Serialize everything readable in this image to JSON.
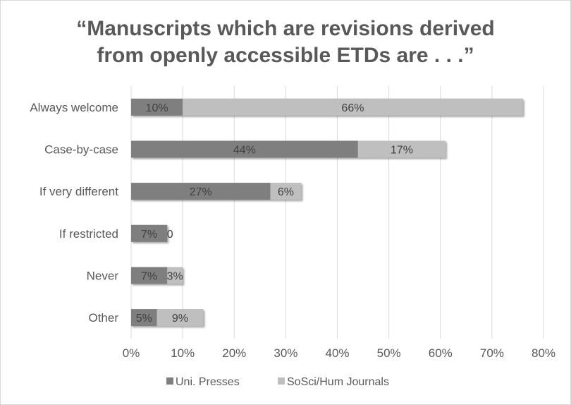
{
  "chart_data": {
    "type": "bar",
    "orientation": "horizontal",
    "stacked": true,
    "title_lines": [
      "“Manuscripts which are revisions derived",
      "from openly accessible ETDs are . . .”"
    ],
    "categories": [
      "Always welcome",
      "Case-by-case",
      "If very different",
      "If restricted",
      "Never",
      "Other"
    ],
    "series": [
      {
        "name": "Uni. Presses",
        "color": "#7f7f7f",
        "values": [
          10,
          44,
          27,
          7,
          7,
          5
        ],
        "labels": [
          "10%",
          "44%",
          "27%",
          "7%",
          "7%",
          "5%"
        ]
      },
      {
        "name": "SoSci/Hum Journals",
        "color": "#bfbfbf",
        "values": [
          66,
          17,
          6,
          0,
          3,
          9
        ],
        "labels": [
          "66%",
          "17%",
          "6%",
          "0",
          "3%",
          "9%"
        ]
      }
    ],
    "x_ticks": [
      "0%",
      "10%",
      "20%",
      "30%",
      "40%",
      "50%",
      "60%",
      "70%",
      "80%"
    ],
    "xlim": [
      0,
      80
    ],
    "grid": true,
    "legend_position": "bottom"
  }
}
